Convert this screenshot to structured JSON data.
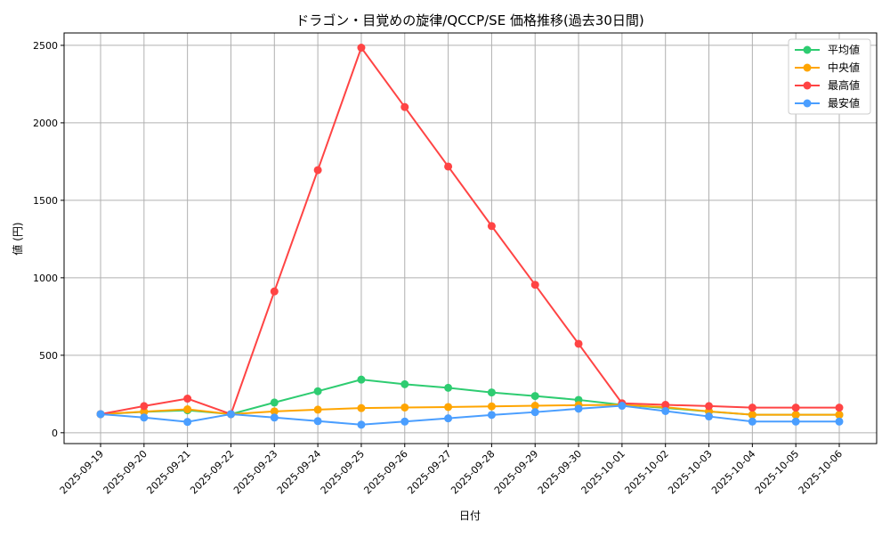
{
  "chart_data": {
    "type": "line",
    "title": "ドラゴン・目覚めの旋律/QCCP/SE 価格推移(過去30日間)",
    "xlabel": "日付",
    "ylabel": "値 (円)",
    "ylim": [
      -70,
      2580
    ],
    "yticks": [
      0,
      500,
      1000,
      1500,
      2000,
      2500
    ],
    "grid": true,
    "legend_position": "top-right",
    "x": [
      "2025-09-19",
      "2025-09-20",
      "2025-09-21",
      "2025-09-22",
      "2025-09-23",
      "2025-09-24",
      "2025-09-25",
      "2025-09-26",
      "2025-09-27",
      "2025-09-28",
      "2025-09-29",
      "2025-09-30",
      "2025-10-01",
      "2025-10-02",
      "2025-10-03",
      "2025-10-04",
      "2025-10-05",
      "2025-10-06"
    ],
    "series": [
      {
        "name": "平均値",
        "color": "#2ecc71",
        "values": [
          120,
          135,
          145,
          120,
          195,
          268,
          343,
          313,
          290,
          260,
          237,
          212,
          180,
          160,
          137,
          116,
          116,
          116
        ]
      },
      {
        "name": "中央値",
        "color": "#ffa500",
        "values": [
          120,
          136,
          151,
          120,
          138,
          149,
          159,
          163,
          166,
          170,
          174,
          178,
          180,
          165,
          138,
          116,
          116,
          116
        ]
      },
      {
        "name": "最高値",
        "color": "#ff4444",
        "values": [
          120,
          172,
          220,
          120,
          912,
          1695,
          2485,
          2102,
          1718,
          1334,
          955,
          574,
          190,
          180,
          172,
          162,
          162,
          162
        ]
      },
      {
        "name": "最安値",
        "color": "#4a9eff",
        "values": [
          120,
          98,
          70,
          120,
          98,
          75,
          52,
          72,
          93,
          115,
          133,
          155,
          174,
          140,
          105,
          72,
          72,
          72
        ]
      }
    ]
  }
}
